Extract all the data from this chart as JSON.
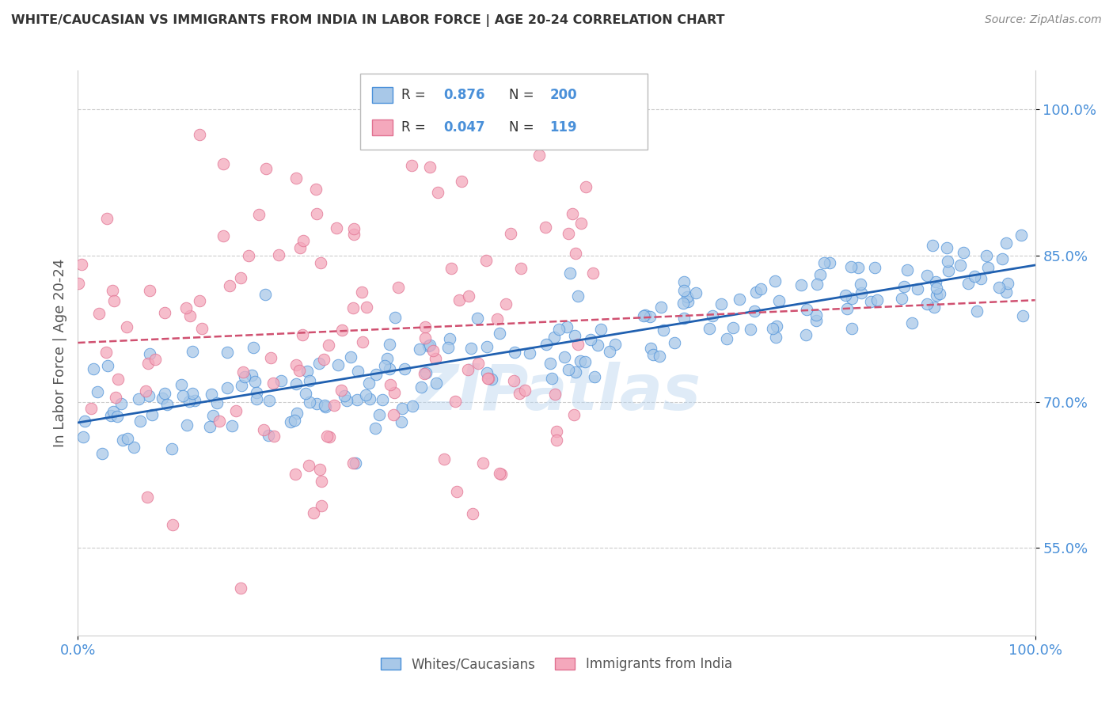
{
  "title": "WHITE/CAUCASIAN VS IMMIGRANTS FROM INDIA IN LABOR FORCE | AGE 20-24 CORRELATION CHART",
  "source": "Source: ZipAtlas.com",
  "ylabel": "In Labor Force | Age 20-24",
  "blue_R": 0.876,
  "blue_N": 200,
  "pink_R": 0.047,
  "pink_N": 119,
  "blue_color": "#A8C8E8",
  "pink_color": "#F4A8BC",
  "blue_edge_color": "#4A90D9",
  "pink_edge_color": "#E07090",
  "blue_line_color": "#2060B0",
  "pink_line_color": "#D05070",
  "legend_label_blue": "Whites/Caucasians",
  "legend_label_pink": "Immigrants from India",
  "watermark": "ZIPatlas",
  "background_color": "#ffffff",
  "xmin": 0.0,
  "xmax": 1.0,
  "ymin": 0.46,
  "ymax": 1.04,
  "yticks": [
    0.55,
    0.7,
    0.85,
    1.0
  ],
  "yticklabels": [
    "55.0%",
    "70.0%",
    "85.0%",
    "100.0%"
  ],
  "xticks": [
    0.0,
    1.0
  ],
  "xticklabels": [
    "0.0%",
    "100.0%"
  ],
  "tick_color": "#4A90D9",
  "grid_color": "#cccccc",
  "title_color": "#333333",
  "source_color": "#888888",
  "ylabel_color": "#555555",
  "blue_seed": 42,
  "pink_seed": 7
}
